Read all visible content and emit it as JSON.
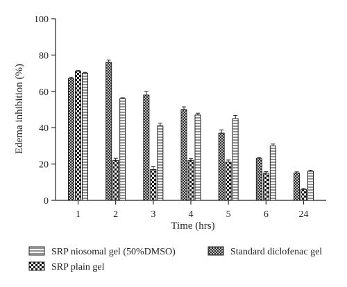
{
  "chart_data": {
    "type": "bar",
    "categories": [
      "1",
      "2",
      "3",
      "4",
      "5",
      "6",
      "24"
    ],
    "series": [
      {
        "name": "Standard diclofenac gel",
        "pattern": "crosshatch",
        "values": [
          67,
          76,
          58,
          50,
          37,
          23,
          15
        ],
        "errors": [
          0.8,
          1.2,
          2.0,
          1.5,
          1.8,
          0.5,
          0.7
        ]
      },
      {
        "name": "SRP plain gel",
        "pattern": "checker",
        "values": [
          71,
          22,
          17,
          22,
          21,
          15,
          6
        ],
        "errors": [
          0.5,
          1.2,
          1.5,
          1.0,
          1.2,
          0.8,
          0.5
        ]
      },
      {
        "name": "SRP niosomal gel (50%DMSO)",
        "pattern": "hstripes",
        "values": [
          70,
          56,
          41,
          47,
          45,
          30,
          16
        ],
        "errors": [
          0.5,
          0.5,
          1.5,
          1.0,
          1.8,
          1.0,
          0.6
        ]
      }
    ],
    "title": "",
    "xlabel": "Time (hrs)",
    "ylabel": "Edema inhibition (%)",
    "ylim": [
      0,
      100
    ],
    "yticks": [
      0,
      20,
      40,
      60,
      80,
      100
    ],
    "grid": false,
    "legend_position": "bottom"
  },
  "colors": {
    "ink": "#222222",
    "fill": "#ffffff"
  }
}
